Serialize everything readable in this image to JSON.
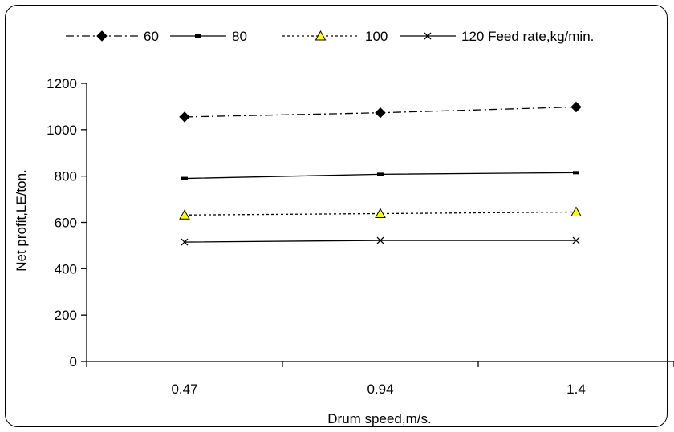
{
  "chart_data": {
    "type": "line",
    "title": "",
    "xlabel": "Drum speed,m/s.",
    "ylabel": "Net profit,LE/ton.",
    "categories": [
      "0.47",
      "0.94",
      "1.4"
    ],
    "ylim": [
      0,
      1200
    ],
    "yticks": [
      0,
      200,
      400,
      600,
      800,
      1000,
      1200
    ],
    "grid": false,
    "legend_position": "top",
    "legend_title": "Feed rate,kg/min.",
    "series": [
      {
        "name": "60",
        "values": [
          1055,
          1073,
          1098
        ],
        "line": "dash-dot",
        "marker": "diamond",
        "marker_color": "#000000"
      },
      {
        "name": "80",
        "values": [
          790,
          808,
          815
        ],
        "line": "solid",
        "marker": "dash",
        "marker_color": "#000000"
      },
      {
        "name": "100",
        "values": [
          632,
          638,
          645
        ],
        "line": "dotted",
        "marker": "triangle",
        "marker_color": "#ffff00"
      },
      {
        "name": "120",
        "values": [
          515,
          522,
          522
        ],
        "line": "solid",
        "marker": "x",
        "marker_color": "#000000"
      }
    ]
  }
}
